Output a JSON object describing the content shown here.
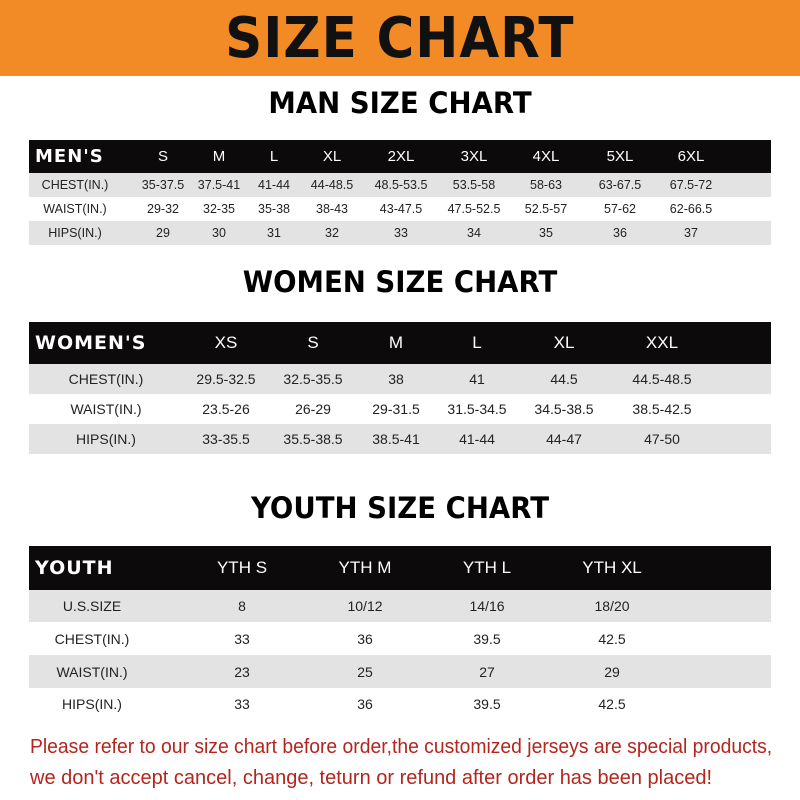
{
  "banner": {
    "title": "SIZE CHART",
    "color": "#f28a26"
  },
  "men": {
    "title": "MAN SIZE CHART",
    "header": [
      "MEN'S",
      "S",
      "M",
      "L",
      "XL",
      "2XL",
      "3XL",
      "4XL",
      "5XL",
      "6XL"
    ],
    "rows": [
      [
        "CHEST(IN.)",
        "35-37.5",
        "37.5-41",
        "41-44",
        "44-48.5",
        "48.5-53.5",
        "53.5-58",
        "58-63",
        "63-67.5",
        "67.5-72"
      ],
      [
        "WAIST(IN.)",
        "29-32",
        "32-35",
        "35-38",
        "38-43",
        "43-47.5",
        "47.5-52.5",
        "52.5-57",
        "57-62",
        "62-66.5"
      ],
      [
        "HIPS(IN.)",
        "29",
        "30",
        "31",
        "32",
        "33",
        "34",
        "35",
        "36",
        "37"
      ]
    ]
  },
  "women": {
    "title": "WOMEN SIZE CHART",
    "header": [
      "WOMEN'S",
      "XS",
      "S",
      "M",
      "L",
      "XL",
      "XXL"
    ],
    "rows": [
      [
        "CHEST(IN.)",
        "29.5-32.5",
        "32.5-35.5",
        "38",
        "41",
        "44.5",
        "44.5-48.5"
      ],
      [
        "WAIST(IN.)",
        "23.5-26",
        "26-29",
        "29-31.5",
        "31.5-34.5",
        "34.5-38.5",
        "38.5-42.5"
      ],
      [
        "HIPS(IN.)",
        "33-35.5",
        "35.5-38.5",
        "38.5-41",
        "41-44",
        "44-47",
        "47-50"
      ]
    ]
  },
  "youth": {
    "title": "YOUTH SIZE CHART",
    "header": [
      "YOUTH",
      "YTH S",
      "YTH M",
      "YTH L",
      "YTH XL"
    ],
    "rows": [
      [
        "U.S.SIZE",
        "8",
        "10/12",
        "14/16",
        "18/20"
      ],
      [
        "CHEST(IN.)",
        "33",
        "36",
        "39.5",
        "42.5"
      ],
      [
        "WAIST(IN.)",
        "23",
        "25",
        "27",
        "29"
      ],
      [
        "HIPS(IN.)",
        "33",
        "36",
        "39.5",
        "42.5"
      ]
    ]
  },
  "footer": {
    "line1": "Please refer to our size chart before order,the customized jerseys are special products,",
    "line2": "we don't accept cancel, change, teturn or refund after order has been placed!",
    "color": "#b3261e"
  }
}
